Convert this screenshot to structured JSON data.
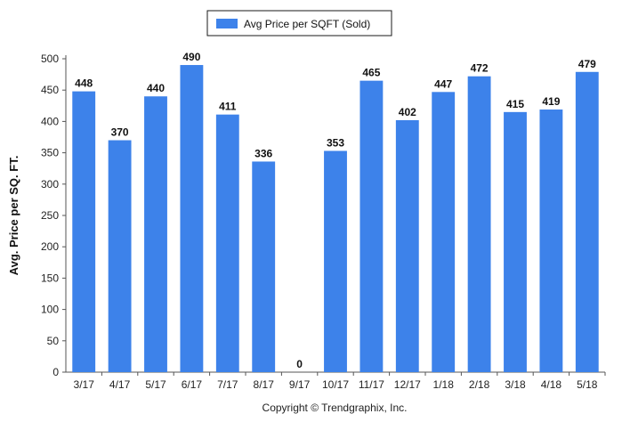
{
  "chart_data": {
    "type": "bar",
    "title": "",
    "xlabel": "",
    "ylabel": "Avg. Price per SQ. FT.",
    "categories": [
      "3/17",
      "4/17",
      "5/17",
      "6/17",
      "7/17",
      "8/17",
      "9/17",
      "10/17",
      "11/17",
      "12/17",
      "1/18",
      "2/18",
      "3/18",
      "4/18",
      "5/18"
    ],
    "series": [
      {
        "name": "Avg Price per SQFT (Sold)",
        "values": [
          448,
          370,
          440,
          490,
          411,
          336,
          0,
          353,
          465,
          402,
          447,
          472,
          415,
          419,
          479
        ],
        "color": "#3d82ea"
      }
    ],
    "ylim": [
      0,
      500
    ],
    "yticks": [
      0,
      50,
      100,
      150,
      200,
      250,
      300,
      350,
      400,
      450,
      500
    ],
    "grid": false,
    "legend": "top-center",
    "data_labels": true
  },
  "footer": {
    "copyright": "Copyright © Trendgraphix, Inc."
  }
}
